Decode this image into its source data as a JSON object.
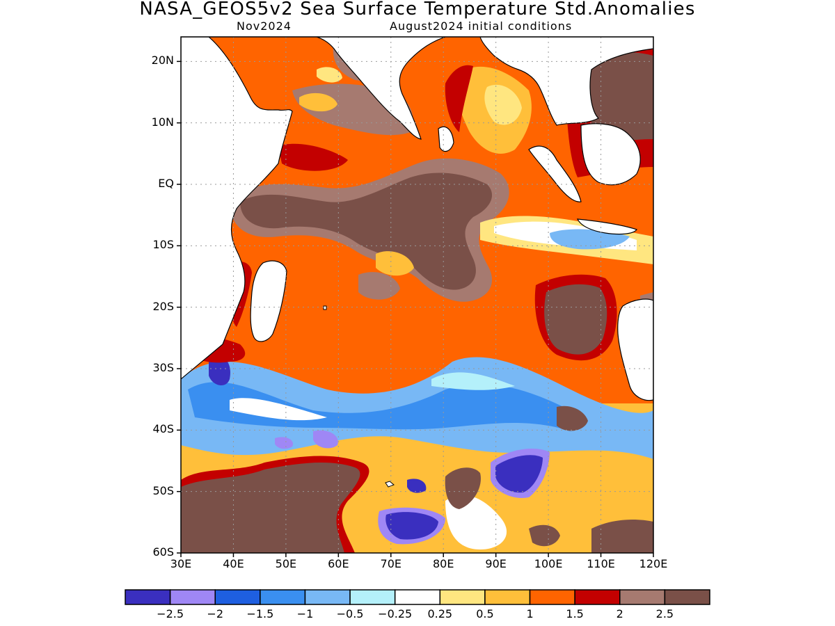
{
  "title": "NASA_GEOS5v2 Sea Surface Temperature Std.Anomalies",
  "subtitle_left": "Nov2024",
  "subtitle_right": "August2024 initial conditions",
  "map": {
    "region": "Indian Ocean",
    "lon_range": [
      30,
      120
    ],
    "lat_range": [
      -60,
      24
    ],
    "lat_ticks": [
      {
        "value": 20,
        "label": "20N"
      },
      {
        "value": 10,
        "label": "10N"
      },
      {
        "value": 0,
        "label": "EQ"
      },
      {
        "value": -10,
        "label": "10S"
      },
      {
        "value": -20,
        "label": "20S"
      },
      {
        "value": -30,
        "label": "30S"
      },
      {
        "value": -40,
        "label": "40S"
      },
      {
        "value": -50,
        "label": "50S"
      },
      {
        "value": -60,
        "label": "60S"
      }
    ],
    "lon_ticks": [
      {
        "value": 30,
        "label": "30E"
      },
      {
        "value": 40,
        "label": "40E"
      },
      {
        "value": 50,
        "label": "50E"
      },
      {
        "value": 60,
        "label": "60E"
      },
      {
        "value": 70,
        "label": "70E"
      },
      {
        "value": 80,
        "label": "80E"
      },
      {
        "value": 90,
        "label": "90E"
      },
      {
        "value": 100,
        "label": "100E"
      },
      {
        "value": 110,
        "label": "110E"
      },
      {
        "value": 120,
        "label": "120E"
      }
    ],
    "grid": true,
    "grid_style": "dotted"
  },
  "colorbar": {
    "colors": [
      "#3a2fbf",
      "#9f87f5",
      "#1e5fe0",
      "#3a8ff0",
      "#78b8f5",
      "#b4f0fa",
      "#ffffff",
      "#ffe680",
      "#ffbf3a",
      "#ff6400",
      "#c30000",
      "#a67a70",
      "#7a5048"
    ],
    "labels": [
      "−2.5",
      "−2",
      "−1.5",
      "−1",
      "−0.5",
      "−0.25",
      "0.25",
      "0.5",
      "1",
      "1.5",
      "2",
      "2.5"
    ]
  }
}
